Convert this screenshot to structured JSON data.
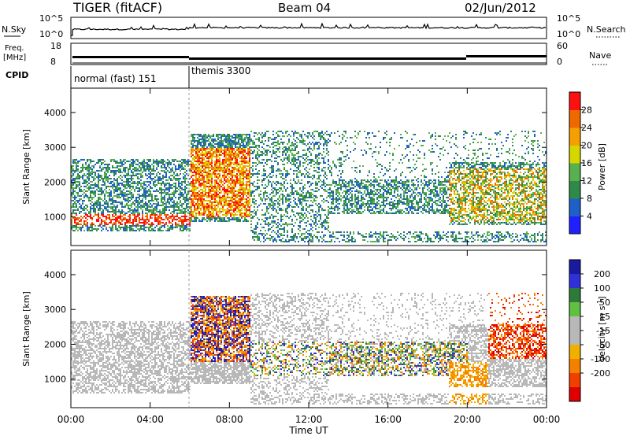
{
  "header": {
    "radar": "TIGER (fitACF)",
    "beam": "Beam 04",
    "date": "02/Jun/2012"
  },
  "panels": {
    "nsky": {
      "label": "N.Sky",
      "right_label": "N.Search",
      "ticks_left": [
        "10^5",
        "10^0"
      ],
      "ticks_right": [
        "10^5",
        "10^0"
      ]
    },
    "freq": {
      "label_top": "Freq.",
      "label_bottom": "[MHz]",
      "right_label": "Nave",
      "ticks_left": [
        "18",
        "8"
      ],
      "ticks_right": [
        "60",
        "0"
      ]
    },
    "cpid": {
      "label": "CPID",
      "modes": [
        "normal (fast) 151",
        "themis 3300"
      ]
    }
  },
  "colors": {
    "power_scale": [
      "#2020ff",
      "#1f5fc8",
      "#2f8a4a",
      "#58b050",
      "#d7d700",
      "#f5a000",
      "#ee6a00",
      "#ff1010"
    ],
    "velocity_scale": [
      "#1a1aa0",
      "#3030d8",
      "#2f7a3a",
      "#60c040",
      "#b8b8b8",
      "#b8b8b8",
      "#f0b000",
      "#f58000",
      "#f04000",
      "#e00000"
    ]
  },
  "chart_data": [
    {
      "type": "heatmap",
      "name": "power",
      "xlabel": "",
      "ylabel": "Slant Range [km]",
      "x_ticks": [
        "00:00",
        "04:00",
        "08:00",
        "12:00",
        "16:00",
        "20:00",
        "00:00"
      ],
      "xlim_hours": [
        0,
        24
      ],
      "y_ticks": [
        1000,
        2000,
        3000,
        4000
      ],
      "ylim": [
        180,
        4700
      ],
      "colorbar": {
        "label": "Power [dB]",
        "ticks": [
          4,
          8,
          12,
          16,
          20,
          24,
          28
        ],
        "range": [
          0,
          32
        ]
      }
    },
    {
      "type": "heatmap",
      "name": "velocity",
      "xlabel": "Time UT",
      "ylabel": "Slant Range [km]",
      "x_ticks": [
        "00:00",
        "04:00",
        "08:00",
        "12:00",
        "16:00",
        "20:00",
        "00:00"
      ],
      "xlim_hours": [
        0,
        24
      ],
      "y_ticks": [
        1000,
        2000,
        3000,
        4000
      ],
      "ylim": [
        180,
        4700
      ],
      "colorbar": {
        "label": "Velocity [m s",
        "label_sup": "-1",
        "label_end": "]",
        "ticks": [
          200,
          100,
          50,
          15,
          -15,
          -50,
          -100,
          -200
        ]
      }
    }
  ]
}
